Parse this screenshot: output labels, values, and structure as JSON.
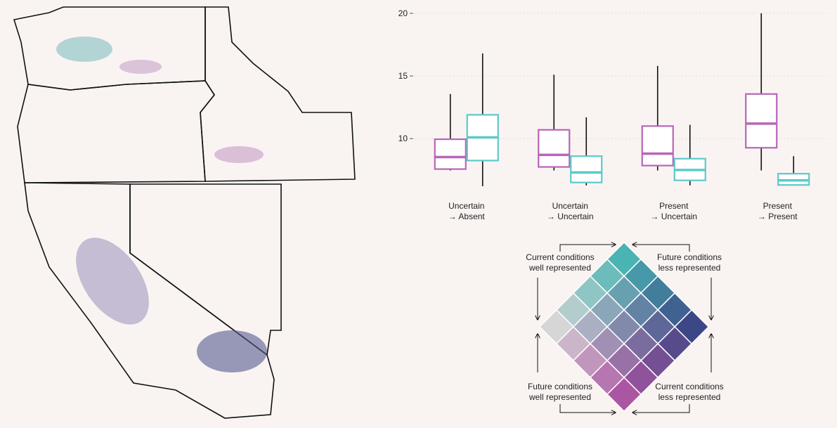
{
  "chart_data": {
    "type": "box",
    "ylim": [
      6.2,
      20.5
    ],
    "yticks": [
      10,
      15,
      20
    ],
    "grid": true,
    "categories": [
      "Uncertain\n→ Absent",
      "Uncertain\n→ Uncertain",
      "Present\n→ Uncertain",
      "Present\n→ Present"
    ],
    "series": [
      {
        "color": "#b865b8",
        "min": [
          7.46,
          7.46,
          7.46,
          7.46
        ],
        "q1": [
          7.57,
          7.74,
          7.85,
          9.27
        ],
        "median": [
          8.53,
          8.7,
          8.8,
          11.2
        ],
        "q3": [
          9.95,
          10.7,
          11.0,
          13.56
        ],
        "max": [
          13.56,
          15.1,
          15.8,
          20
        ]
      },
      {
        "color": "#5cc9c9",
        "min": [
          6.2,
          6.27,
          6.27,
          6.27
        ],
        "q1": [
          8.25,
          6.5,
          6.67,
          6.3
        ],
        "median": [
          10.1,
          7.3,
          7.5,
          6.67
        ],
        "q3": [
          11.9,
          8.6,
          8.4,
          7.2
        ],
        "max": [
          16.8,
          11.7,
          11.1,
          8.6
        ]
      }
    ]
  },
  "legend": {
    "top_left": "Current conditions\nwell represented",
    "top_right": "Future conditions\nless represented",
    "bottom_left": "Future conditions\nwell represented",
    "bottom_right": "Current conditions\nless represented",
    "corners": {
      "top": "#4ab3b3",
      "right": "#3c4785",
      "left": "#d6d6d6",
      "bottom": "#ab56a2"
    }
  }
}
